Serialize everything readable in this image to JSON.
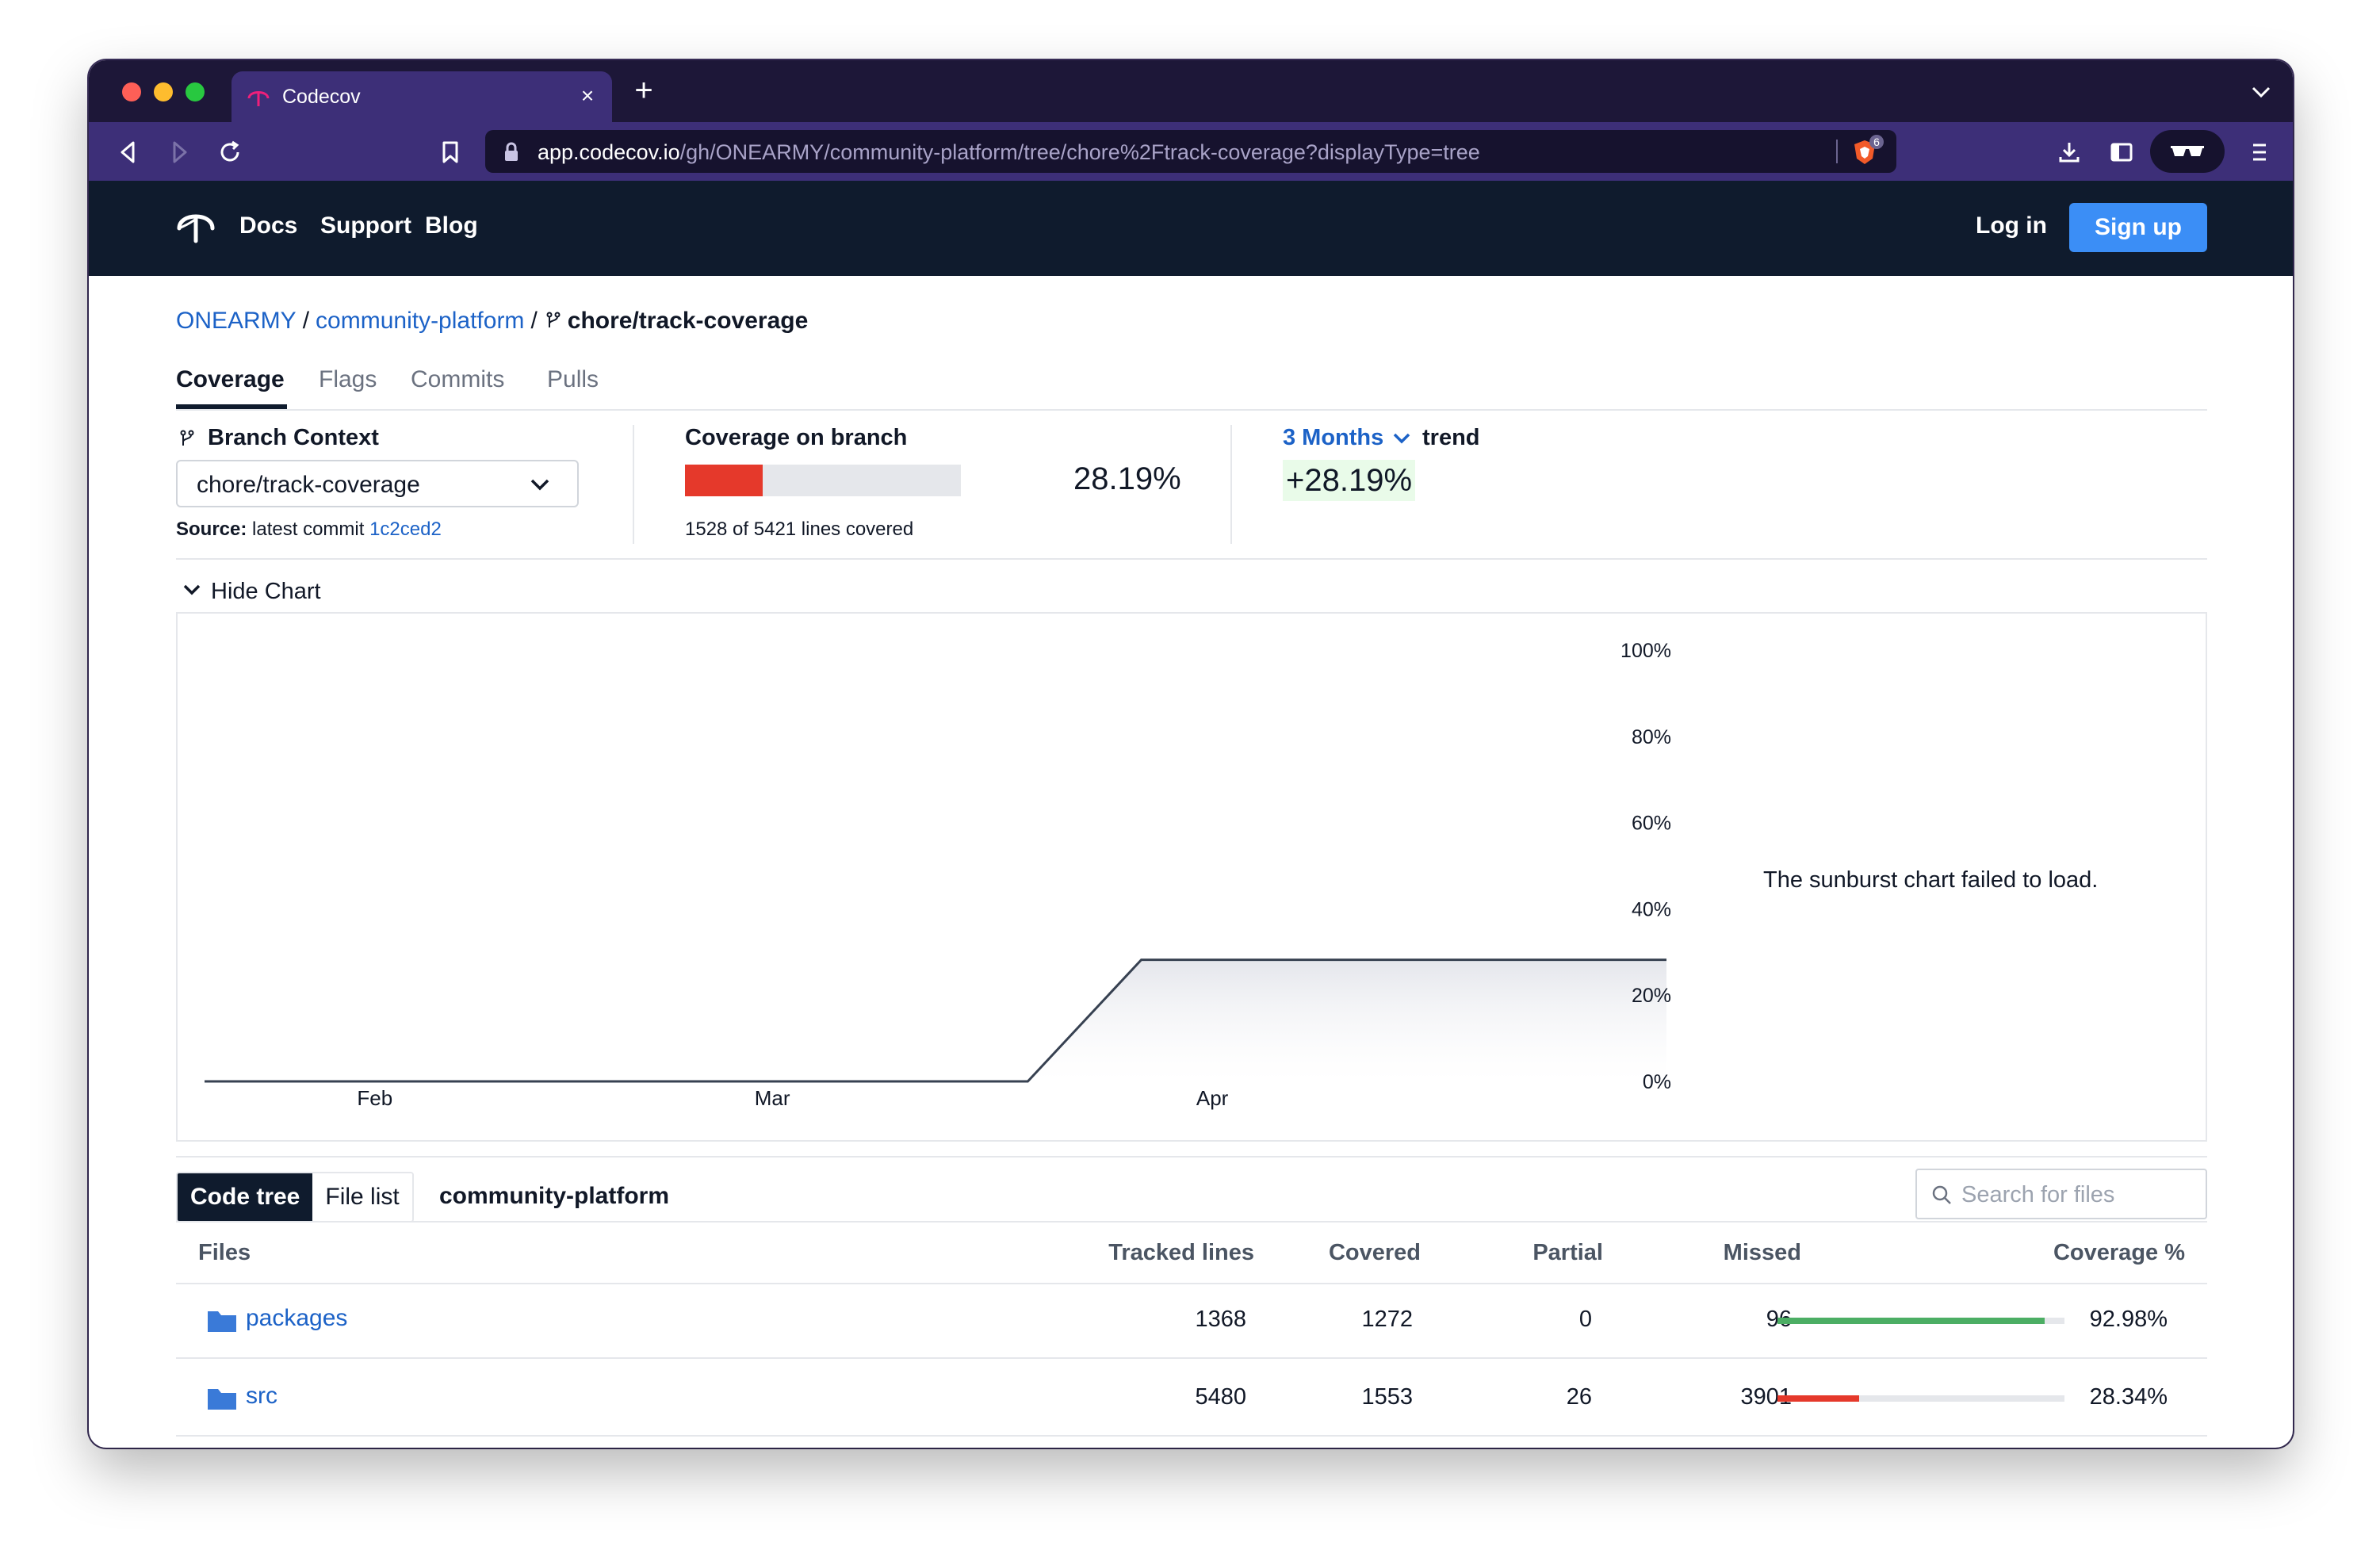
{
  "browser": {
    "tab_title": "Codecov",
    "url_host": "app.codecov.io",
    "url_path": "/gh/ONEARMY/community-platform/tree/chore%2Ftrack-coverage?displayType=tree",
    "shield_count": "6"
  },
  "header": {
    "nav": [
      "Docs",
      "Support",
      "Blog"
    ],
    "login_label": "Log in",
    "signup_label": "Sign up"
  },
  "breadcrumb": {
    "owner": "ONEARMY",
    "repo": "community-platform",
    "branch": "chore/track-coverage"
  },
  "tabs": [
    "Coverage",
    "Flags",
    "Commits",
    "Pulls"
  ],
  "summary": {
    "branch_context_label": "Branch Context",
    "branch_value": "chore/track-coverage",
    "source_label": "Source:",
    "source_text": "latest commit",
    "source_commit": "1c2ced2",
    "coverage_label": "Coverage on branch",
    "coverage_pct": "28.19%",
    "coverage_value": 28.19,
    "lines_covered": "1528 of 5421 lines covered",
    "trend_range": "3 Months",
    "trend_word": "trend",
    "trend_value": "+28.19%"
  },
  "hide_chart_label": "Hide Chart",
  "chart_data": {
    "type": "area",
    "x": [
      "2022-01-20",
      "2022-03-19",
      "2022-03-27",
      "2022-05-03"
    ],
    "y": [
      0,
      0,
      28.19,
      28.19
    ],
    "x_ticks": [
      "Feb",
      "Mar",
      "Apr"
    ],
    "y_ticks": [
      "0%",
      "20%",
      "40%",
      "60%",
      "80%",
      "100%"
    ],
    "ylim": [
      0,
      100
    ],
    "line_color": "#374151"
  },
  "sunburst_message": "The sunburst chart failed to load.",
  "files_toolbar": {
    "code_tree_label": "Code tree",
    "file_list_label": "File list",
    "repo_name": "community-platform",
    "search_placeholder": "Search for files"
  },
  "table": {
    "headers": {
      "files": "Files",
      "tracked": "Tracked lines",
      "covered": "Covered",
      "partial": "Partial",
      "missed": "Missed",
      "coverage": "Coverage %"
    },
    "rows": [
      {
        "name": "packages",
        "tracked": "1368",
        "covered": "1272",
        "partial": "0",
        "missed": "96",
        "coverage": "92.98%",
        "coverage_value": 92.98,
        "bar_color": "#4cae64"
      },
      {
        "name": "src",
        "tracked": "5480",
        "covered": "1553",
        "partial": "26",
        "missed": "3901",
        "coverage": "28.34%",
        "coverage_value": 28.34,
        "bar_color": "#e5392b"
      }
    ]
  }
}
